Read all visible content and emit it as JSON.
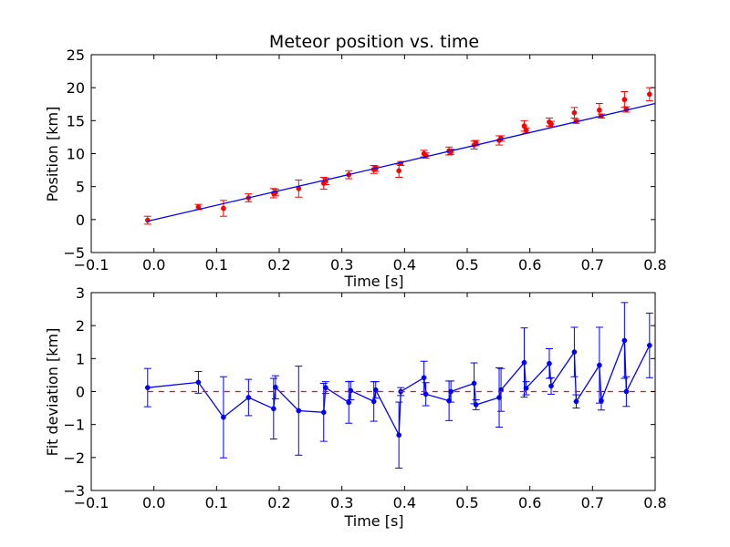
{
  "chart_data": [
    {
      "type": "scatter",
      "title": "Meteor position vs. time",
      "xlabel": "Time [s]",
      "ylabel": "Position [km]",
      "xlim": [
        -0.1,
        0.8
      ],
      "ylim": [
        -5,
        25
      ],
      "xticks": [
        "−0.1",
        "0.0",
        "0.1",
        "0.2",
        "0.3",
        "0.4",
        "0.5",
        "0.6",
        "0.7",
        "0.8"
      ],
      "yticks": [
        "−5",
        "0",
        "5",
        "10",
        "15",
        "20",
        "25"
      ],
      "grid": false,
      "series": [
        {
          "kind": "errorbar",
          "color": "#ff0000",
          "x": [
            -0.01,
            0.071,
            0.111,
            0.151,
            0.191,
            0.194,
            0.231,
            0.271,
            0.274,
            0.311,
            0.351,
            0.354,
            0.391,
            0.394,
            0.431,
            0.434,
            0.471,
            0.474,
            0.511,
            0.514,
            0.551,
            0.554,
            0.591,
            0.594,
            0.631,
            0.634,
            0.671,
            0.674,
            0.711,
            0.714,
            0.751,
            0.754,
            0.791
          ],
          "y": [
            -0.1,
            1.9,
            1.7,
            3.3,
            4.0,
            4.1,
            4.7,
            5.5,
            5.8,
            6.8,
            7.6,
            7.7,
            7.4,
            8.5,
            10.0,
            9.7,
            10.4,
            10.3,
            11.3,
            11.6,
            12.0,
            12.3,
            14.2,
            13.5,
            14.8,
            14.5,
            16.2,
            14.9,
            16.6,
            15.7,
            18.2,
            16.7,
            19.0
          ],
          "yerr": [
            0.6,
            0.4,
            1.2,
            0.6,
            0.7,
            0.5,
            1.3,
            0.9,
            0.5,
            0.6,
            0.6,
            0.4,
            1.0,
            0.3,
            0.5,
            0.4,
            0.6,
            0.4,
            0.6,
            0.4,
            0.7,
            0.4,
            0.8,
            0.4,
            0.6,
            0.4,
            0.8,
            0.3,
            1.0,
            0.3,
            1.2,
            0.4,
            1.0
          ]
        },
        {
          "kind": "line",
          "color": "#0000ff",
          "x": [
            -0.01,
            0.8
          ],
          "y": [
            -0.25,
            17.6
          ]
        }
      ]
    },
    {
      "type": "line",
      "xlabel": "Time [s]",
      "ylabel": "Fit deviation [km]",
      "xlim": [
        -0.1,
        0.8
      ],
      "ylim": [
        -3,
        3
      ],
      "xticks": [
        "−0.1",
        "0.0",
        "0.1",
        "0.2",
        "0.3",
        "0.4",
        "0.5",
        "0.6",
        "0.7",
        "0.8"
      ],
      "yticks": [
        "−3",
        "−2",
        "−1",
        "0",
        "1",
        "2",
        "3"
      ],
      "grid": false,
      "series": [
        {
          "kind": "errorbar-line",
          "color": "#0000ff",
          "x": [
            -0.01,
            0.071,
            0.111,
            0.151,
            0.191,
            0.194,
            0.231,
            0.271,
            0.274,
            0.311,
            0.314,
            0.351,
            0.354,
            0.391,
            0.394,
            0.431,
            0.434,
            0.471,
            0.474,
            0.511,
            0.514,
            0.551,
            0.554,
            0.591,
            0.594,
            0.631,
            0.634,
            0.671,
            0.674,
            0.711,
            0.714,
            0.751,
            0.754,
            0.791
          ],
          "y": [
            0.12,
            0.28,
            -0.78,
            -0.18,
            -0.52,
            0.13,
            -0.58,
            -0.63,
            0.12,
            -0.33,
            0.03,
            -0.3,
            0.05,
            -1.32,
            0.0,
            0.42,
            -0.08,
            -0.28,
            0.0,
            0.25,
            -0.4,
            -0.18,
            0.05,
            0.88,
            0.1,
            0.85,
            0.17,
            1.2,
            -0.3,
            0.8,
            -0.28,
            1.55,
            0.0,
            1.4
          ],
          "yerr": [
            0.58,
            0.33,
            1.23,
            0.55,
            0.92,
            0.35,
            1.35,
            0.88,
            0.18,
            0.63,
            0.28,
            0.6,
            0.25,
            1.0,
            0.12,
            0.5,
            0.35,
            0.6,
            0.32,
            0.62,
            0.15,
            0.9,
            0.65,
            1.05,
            0.2,
            0.45,
            0.25,
            0.75,
            0.2,
            1.15,
            0.28,
            1.15,
            0.45,
            0.98
          ]
        },
        {
          "kind": "dashed-line",
          "color": "#ff0000",
          "x": [
            -0.01,
            0.8
          ],
          "y": [
            0,
            0
          ]
        }
      ]
    }
  ]
}
